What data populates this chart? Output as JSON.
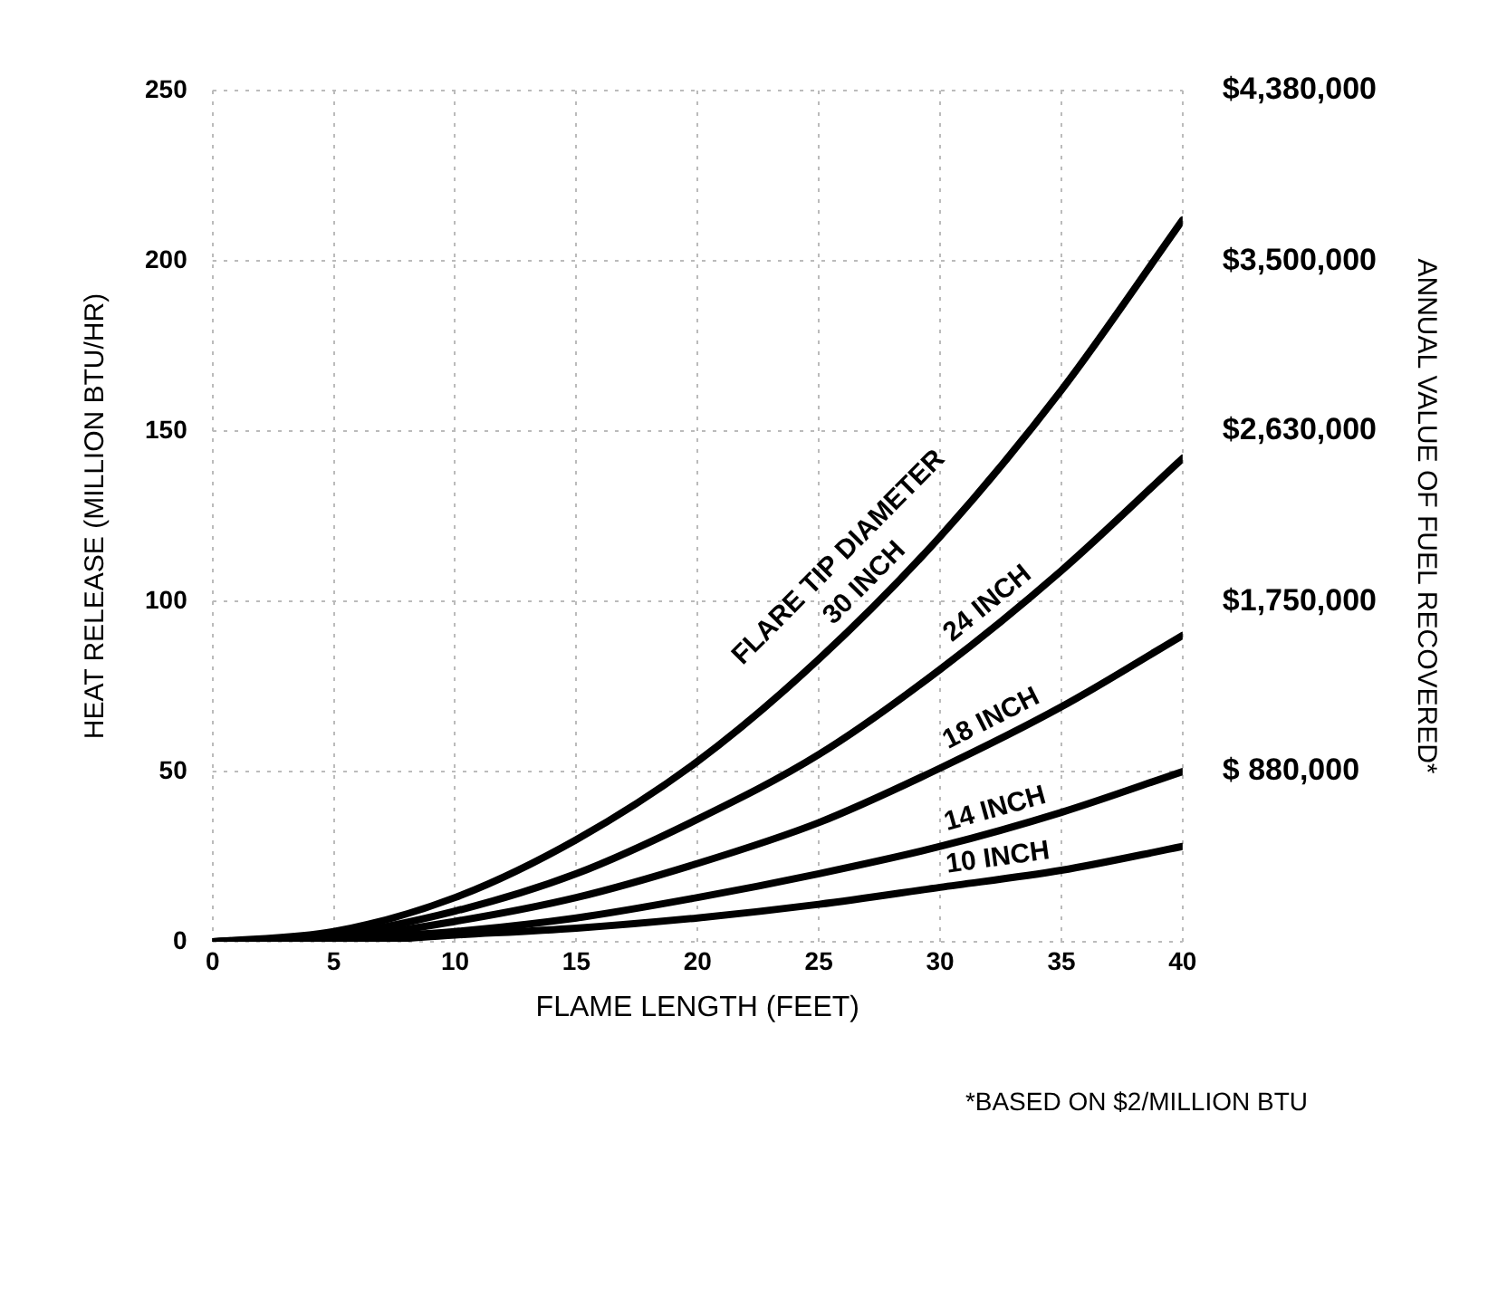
{
  "chart_data": {
    "type": "line",
    "xlabel": "FLAME LENGTH (FEET)",
    "ylabel": "HEAT RELEASE (MILLION BTU/HR)",
    "y2label": "ANNUAL VALUE OF FUEL RECOVERED*",
    "x": [
      0,
      5,
      10,
      15,
      20,
      25,
      30,
      35,
      40
    ],
    "series": [
      {
        "name": "30 INCH",
        "color": "#000000",
        "values": [
          0,
          3,
          13,
          30,
          53,
          83,
          119,
          162,
          212
        ]
      },
      {
        "name": "24 INCH",
        "color": "#000000",
        "values": [
          0,
          2,
          9,
          20,
          36,
          55,
          80,
          109,
          142
        ]
      },
      {
        "name": "18 INCH",
        "color": "#000000",
        "values": [
          0,
          1,
          6,
          13,
          23,
          35,
          51,
          69,
          90
        ]
      },
      {
        "name": "14 INCH",
        "color": "#000000",
        "values": [
          0,
          1,
          3,
          7,
          13,
          20,
          28,
          38,
          50
        ]
      },
      {
        "name": "10 INCH",
        "color": "#000000",
        "values": [
          0,
          0,
          2,
          4,
          7,
          11,
          16,
          21,
          28
        ]
      }
    ],
    "xlim": [
      0,
      40
    ],
    "xticks": [
      0,
      5,
      10,
      15,
      20,
      25,
      30,
      35,
      40
    ],
    "ylim": [
      0,
      250
    ],
    "yticks": [
      0,
      50,
      100,
      150,
      200,
      250
    ],
    "y2lim": [
      0,
      4380000
    ],
    "y2ticks": [
      {
        "value": 880000,
        "label": "$ 880,000"
      },
      {
        "value": 1750000,
        "label": "$1,750,000"
      },
      {
        "value": 2630000,
        "label": "$2,630,000"
      },
      {
        "value": 3500000,
        "label": "$3,500,000"
      },
      {
        "value": 4380000,
        "label": "$4,380,000"
      }
    ],
    "grid": true,
    "legend": false,
    "marker": "none",
    "line_style": "solid",
    "annotations": [
      "FLARE TIP DIAMETER",
      "*BASED ON $2/MILLION BTU"
    ]
  }
}
